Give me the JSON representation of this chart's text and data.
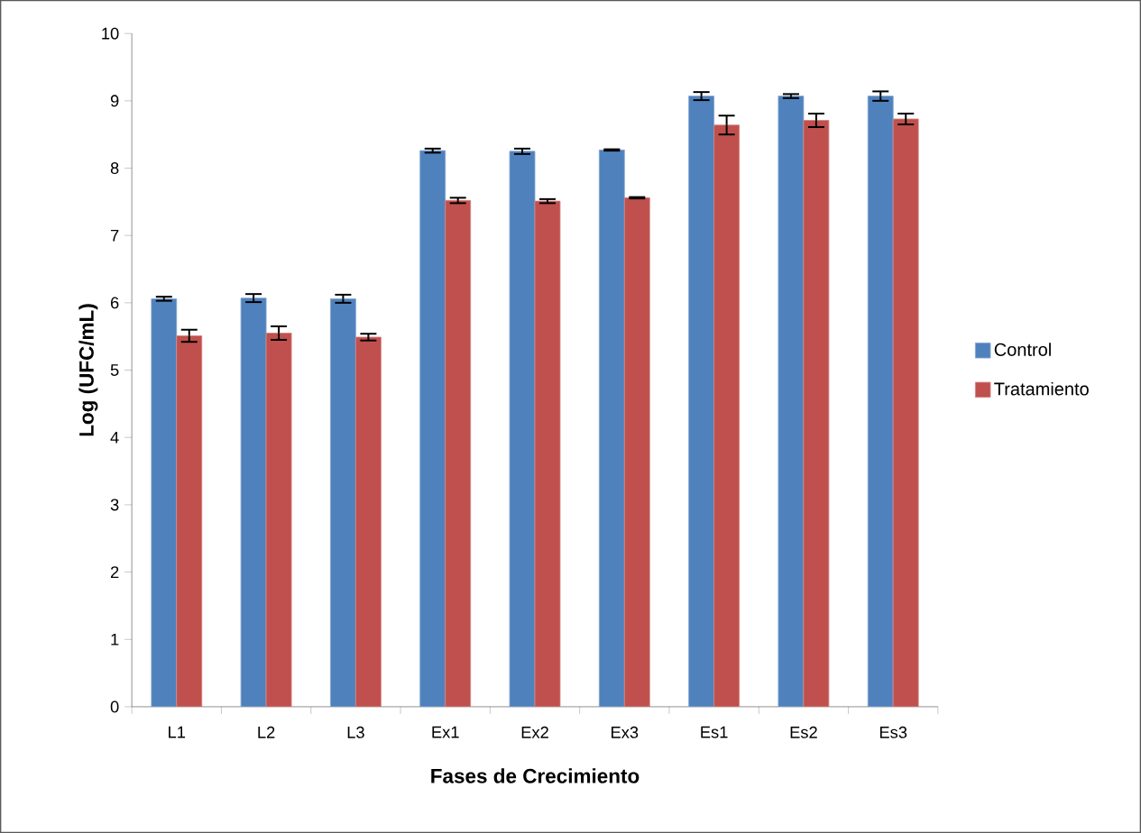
{
  "chart_data": {
    "type": "bar",
    "xlabel": "Fases de Crecimiento",
    "ylabel": "Log (UFC/mL)",
    "categories": [
      "L1",
      "L2",
      "L3",
      "Ex1",
      "Ex2",
      "Ex3",
      "Es1",
      "Es2",
      "Es3"
    ],
    "series": [
      {
        "name": "Control",
        "color": "#4f81bd",
        "values": [
          6.06,
          6.07,
          6.06,
          8.26,
          8.25,
          8.27,
          9.07,
          9.07,
          9.07
        ],
        "errors": [
          0.03,
          0.06,
          0.06,
          0.03,
          0.04,
          0.01,
          0.06,
          0.03,
          0.07
        ]
      },
      {
        "name": "Tratamiento",
        "color": "#c0504d",
        "values": [
          5.51,
          5.55,
          5.49,
          7.52,
          7.51,
          7.56,
          8.64,
          8.71,
          8.73
        ],
        "errors": [
          0.09,
          0.1,
          0.05,
          0.04,
          0.03,
          0.01,
          0.14,
          0.1,
          0.08
        ]
      }
    ],
    "ylim": [
      0,
      10
    ],
    "yticks": [
      0,
      1,
      2,
      3,
      4,
      5,
      6,
      7,
      8,
      9,
      10
    ],
    "grid": false,
    "legend": "right"
  }
}
